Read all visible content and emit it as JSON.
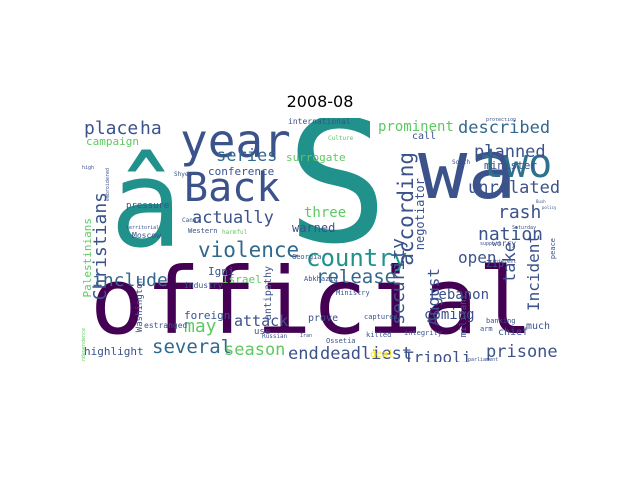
{
  "title": "2008-08",
  "colors": {
    "dark_purple": "#440154",
    "indigo": "#3b528b",
    "teal": "#21918c",
    "green": "#5ec962",
    "yellow": "#fde725"
  },
  "words": [
    {
      "text": "official",
      "color": "#440154"
    },
    {
      "text": "S",
      "color": "#21918c"
    },
    {
      "text": "â",
      "color": "#21918c"
    },
    {
      "text": "wa",
      "color": "#3b528b"
    },
    {
      "text": "year",
      "color": "#3b528b"
    },
    {
      "text": "Back",
      "color": "#3b528b"
    },
    {
      "text": "two",
      "color": "#2c728e"
    },
    {
      "text": "country",
      "color": "#21918c"
    },
    {
      "text": "Christians",
      "color": "#3b528b"
    },
    {
      "text": "violence",
      "color": "#31688e"
    },
    {
      "text": "include",
      "color": "#31688e"
    },
    {
      "text": "several",
      "color": "#31688e"
    },
    {
      "text": "season",
      "color": "#5ec962"
    },
    {
      "text": "end",
      "color": "#3b528b"
    },
    {
      "text": "deadliest",
      "color": "#3b528b"
    },
    {
      "text": "prisoner",
      "color": "#3b528b"
    },
    {
      "text": "Tripoli",
      "color": "#3b528b"
    },
    {
      "text": "release",
      "color": "#31688e"
    },
    {
      "text": "August",
      "color": "#3b528b"
    },
    {
      "text": "according",
      "color": "#3b528b"
    },
    {
      "text": "security",
      "color": "#3b528b"
    },
    {
      "text": "described",
      "color": "#31688e"
    },
    {
      "text": "prominent",
      "color": "#5ec962"
    },
    {
      "text": "planned",
      "color": "#3b528b"
    },
    {
      "text": "unrelated",
      "color": "#3b528b"
    },
    {
      "text": "rash",
      "color": "#3b528b"
    },
    {
      "text": "nation",
      "color": "#3b528b"
    },
    {
      "text": "open",
      "color": "#3b528b"
    },
    {
      "text": "take",
      "color": "#3b528b"
    },
    {
      "text": "Incident",
      "color": "#3b528b"
    },
    {
      "text": "place",
      "color": "#3b528b"
    },
    {
      "text": "ha",
      "color": "#3b528b"
    },
    {
      "text": "series",
      "color": "#31688e"
    },
    {
      "text": "actually",
      "color": "#3b528b"
    },
    {
      "text": "may",
      "color": "#5ec962"
    },
    {
      "text": "attack",
      "color": "#3b528b"
    },
    {
      "text": "coming",
      "color": "#3b528b"
    },
    {
      "text": "Lebanon",
      "color": "#3b528b"
    },
    {
      "text": "three",
      "color": "#5ec962"
    },
    {
      "text": "warned",
      "color": "#3b528b"
    },
    {
      "text": "surrogate",
      "color": "#5ec962"
    },
    {
      "text": "conference",
      "color": "#3b528b"
    },
    {
      "text": "negotiator",
      "color": "#3b528b"
    },
    {
      "text": "minister",
      "color": "#3b528b"
    },
    {
      "text": "Palestinians",
      "color": "#5ec962"
    },
    {
      "text": "Israel",
      "color": "#5ec962"
    },
    {
      "text": "Igni",
      "color": "#3b528b"
    },
    {
      "text": "foreign",
      "color": "#3b528b"
    },
    {
      "text": "highlight",
      "color": "#3b528b"
    },
    {
      "text": "campaign",
      "color": "#5ec962"
    },
    {
      "text": "pressure",
      "color": "#3b528b"
    },
    {
      "text": "Moscow",
      "color": "#3b528b"
    },
    {
      "text": "Zip",
      "color": "#3b528b"
    },
    {
      "text": "militant",
      "color": "#3b528b"
    },
    {
      "text": "chief",
      "color": "#3b528b"
    },
    {
      "text": "much",
      "color": "#3b528b"
    },
    {
      "text": "prove",
      "color": "#3b528b"
    },
    {
      "text": "deal",
      "color": "#fde725"
    },
    {
      "text": "call",
      "color": "#3b528b"
    },
    {
      "text": "worry",
      "color": "#3b528b"
    },
    {
      "text": "antipathy",
      "color": "#3b528b"
    },
    {
      "text": "use",
      "color": "#3b528b"
    },
    {
      "text": "Washington",
      "color": "#3b528b"
    },
    {
      "text": "estranged",
      "color": "#3b528b"
    },
    {
      "text": "international",
      "color": "#3b528b"
    },
    {
      "text": "industry",
      "color": "#3b528b"
    },
    {
      "text": "Ministry",
      "color": "#3b528b"
    },
    {
      "text": "captured",
      "color": "#3b528b"
    },
    {
      "text": "killed",
      "color": "#3b528b"
    },
    {
      "text": "integrity",
      "color": "#3b528b"
    },
    {
      "text": "banking",
      "color": "#3b528b"
    },
    {
      "text": "arm",
      "color": "#3b528b"
    },
    {
      "text": "peace",
      "color": "#3b528b"
    },
    {
      "text": "Georgia",
      "color": "#3b528b"
    },
    {
      "text": "Abkhazia",
      "color": "#3b528b"
    },
    {
      "text": "Ossetia",
      "color": "#3b528b"
    },
    {
      "text": "Western",
      "color": "#3b528b"
    },
    {
      "text": "Canal",
      "color": "#3b528b"
    },
    {
      "text": "harmful",
      "color": "#5ec962"
    },
    {
      "text": "Russian",
      "color": "#3b528b"
    },
    {
      "text": "Shyea",
      "color": "#3b528b"
    },
    {
      "text": "territorial",
      "color": "#3b528b"
    },
    {
      "text": "embroidered",
      "color": "#3b528b"
    },
    {
      "text": "high",
      "color": "#3b528b"
    },
    {
      "text": "Culture",
      "color": "#5ec962"
    },
    {
      "text": "South",
      "color": "#3b528b"
    },
    {
      "text": "protection",
      "color": "#3b528b"
    },
    {
      "text": "support",
      "color": "#3b528b"
    },
    {
      "text": "interest",
      "color": "#3b528b"
    },
    {
      "text": "Saturday",
      "color": "#3b528b"
    },
    {
      "text": "parliament",
      "color": "#3b528b"
    },
    {
      "text": "independence",
      "color": "#5ec962"
    },
    {
      "text": "Iran",
      "color": "#3b528b"
    },
    {
      "text": "policy",
      "color": "#3b528b"
    },
    {
      "text": "Bush",
      "color": "#3b528b"
    }
  ]
}
